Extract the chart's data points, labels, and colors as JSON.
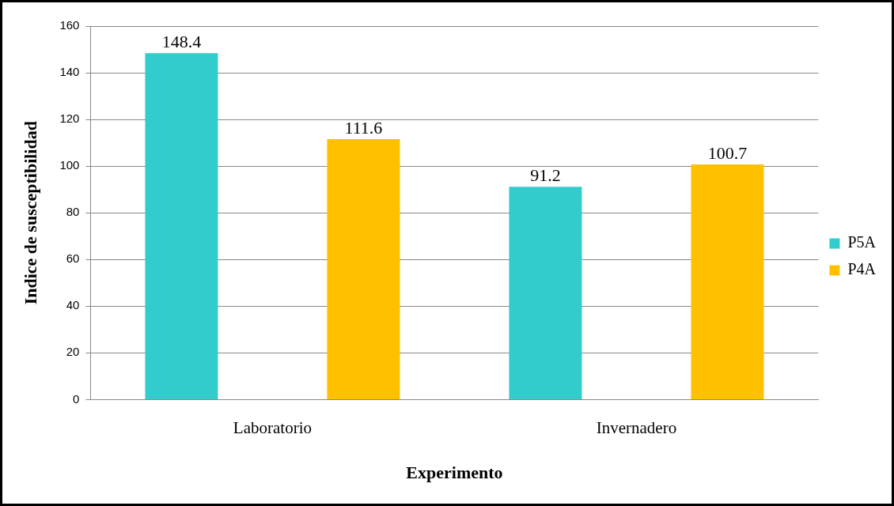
{
  "chart_data": {
    "type": "bar",
    "xlabel": "Experimento",
    "ylabel": "Indice de susceptibilidad",
    "categories": [
      "Laboratorio",
      "Invernadero"
    ],
    "series": [
      {
        "name": "P5A",
        "color": "#33cccc",
        "values": [
          148.4,
          91.2
        ]
      },
      {
        "name": "P4A",
        "color": "#ffc000",
        "values": [
          111.6,
          100.7
        ]
      }
    ],
    "ylim": [
      0,
      160
    ],
    "yticks": [
      0,
      20,
      40,
      60,
      80,
      100,
      120,
      140,
      160
    ],
    "grid": "y",
    "legend": "right",
    "data_labels": true
  }
}
